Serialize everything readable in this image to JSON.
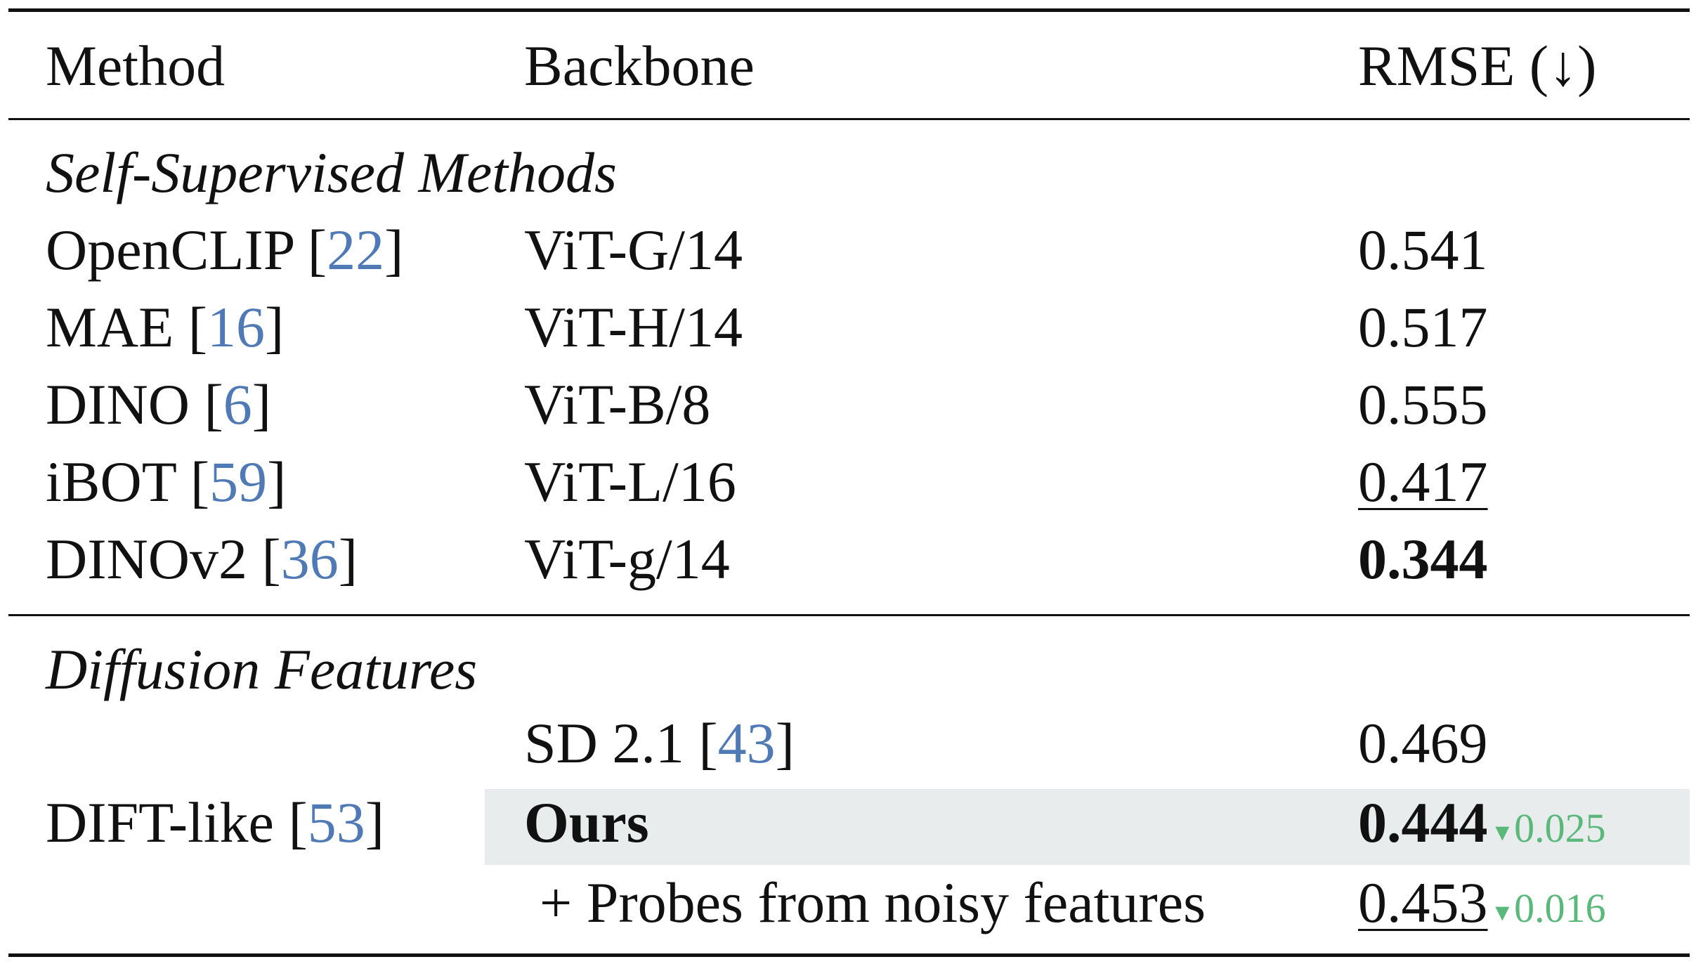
{
  "header": {
    "method": "Method",
    "backbone": "Backbone",
    "metric": "RMSE (↓)"
  },
  "sections": [
    {
      "title": "Self-Supervised Methods",
      "rows": [
        {
          "method": "OpenCLIP",
          "ref": "22",
          "backbone": "ViT-G/14",
          "rmse": "0.541"
        },
        {
          "method": "MAE",
          "ref": "16",
          "backbone": "ViT-H/14",
          "rmse": "0.517"
        },
        {
          "method": "DINO",
          "ref": "6",
          "backbone": "ViT-B/8",
          "rmse": "0.555"
        },
        {
          "method": "iBOT",
          "ref": "59",
          "backbone": "ViT-L/16",
          "rmse": "0.417",
          "style": "second-best (underlined)"
        },
        {
          "method": "DINOv2",
          "ref": "36",
          "backbone": "ViT-g/14",
          "rmse": "0.344",
          "style": "best (bold)"
        }
      ]
    },
    {
      "title": "Diffusion Features",
      "group_method": "DIFT-like",
      "group_ref": "53",
      "rows": [
        {
          "backbone": "SD 2.1",
          "ref": "43",
          "rmse": "0.469"
        },
        {
          "backbone": "Ours",
          "rmse": "0.444",
          "delta": "0.025",
          "style": "bold, highlighted"
        },
        {
          "backbone": "+ Probes from noisy features",
          "rmse": "0.453",
          "delta": "0.016",
          "style": "underlined"
        }
      ]
    }
  ],
  "colors": {
    "reference": "#4f7ab5",
    "delta": "#59b87a",
    "highlight": "#e9ecec",
    "rules": "#111111"
  }
}
